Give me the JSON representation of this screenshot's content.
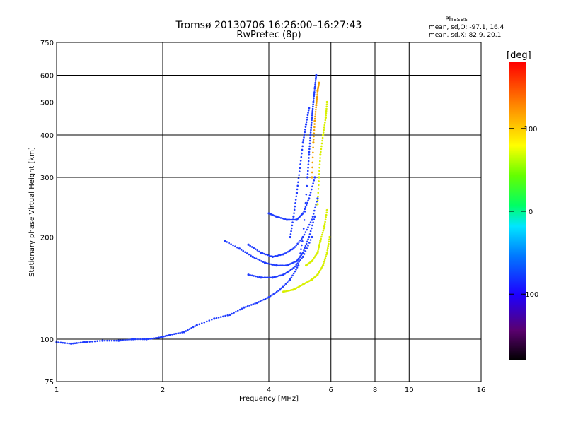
{
  "chart_data": {
    "type": "scatter",
    "title": "Tromsø 20130706 16:26:00–16:27:43",
    "subtitle": "RwPretec (8p)",
    "xlabel": "Frequency [MHz]",
    "ylabel": "Stationary phase Virtual Height [km]",
    "x_scale": "log",
    "y_scale": "log",
    "xlim": [
      1,
      16
    ],
    "ylim": [
      75,
      750
    ],
    "x_ticks": [
      {
        "value": 1,
        "label": "1"
      },
      {
        "value": 2,
        "label": "2"
      },
      {
        "value": 4,
        "label": "4"
      },
      {
        "value": 6,
        "label": "6"
      },
      {
        "value": 8,
        "label": "8"
      },
      {
        "value": 10,
        "label": "10"
      },
      {
        "value": 16,
        "label": "16"
      }
    ],
    "y_ticks": [
      {
        "value": 75,
        "label": "75"
      },
      {
        "value": 100,
        "label": "100"
      },
      {
        "value": 200,
        "label": "200"
      },
      {
        "value": 300,
        "label": "300"
      },
      {
        "value": 400,
        "label": "400"
      },
      {
        "value": 500,
        "label": "500"
      },
      {
        "value": 600,
        "label": "600"
      },
      {
        "value": 750,
        "label": "750"
      }
    ],
    "grid": true,
    "stats": {
      "heading": "Phases",
      "o_line": "mean, sd,O: -97.1, 16.4",
      "x_line": "mean, sd,X: 82.9, 20.1"
    },
    "colorbar": {
      "label": "[deg]",
      "range": [
        -180,
        180
      ],
      "tick_labels": [
        {
          "value": 100,
          "label": "100"
        },
        {
          "value": 0,
          "label": "0"
        },
        {
          "value": -100,
          "label": "-100"
        }
      ]
    },
    "traces": [
      {
        "mode": "O",
        "x": [
          1.0,
          1.1,
          1.2,
          1.35,
          1.5,
          1.65,
          1.8,
          1.95,
          2.1,
          2.3,
          2.5,
          2.8,
          3.1,
          3.4,
          3.7,
          4.0,
          4.3,
          4.6,
          4.85,
          5.0,
          5.15
        ],
        "y": [
          98,
          97,
          98,
          99,
          99,
          100,
          100,
          101,
          103,
          105,
          110,
          115,
          118,
          124,
          128,
          133,
          140,
          150,
          165,
          200,
          300
        ],
        "phase": -110
      },
      {
        "mode": "O",
        "x": [
          5.15,
          5.2,
          5.25,
          5.3,
          5.35,
          5.4,
          5.45
        ],
        "y": [
          300,
          350,
          400,
          450,
          500,
          550,
          600
        ],
        "phase": -110
      },
      {
        "mode": "O",
        "x": [
          3.0,
          3.3,
          3.6,
          3.9,
          4.2,
          4.5,
          4.8,
          5.0,
          5.2,
          5.4
        ],
        "y": [
          195,
          185,
          175,
          168,
          165,
          165,
          170,
          180,
          200,
          230
        ],
        "phase": -105
      },
      {
        "mode": "O",
        "x": [
          3.5,
          3.8,
          4.1,
          4.4,
          4.7,
          5.0,
          5.3,
          5.5
        ],
        "y": [
          190,
          180,
          175,
          178,
          185,
          200,
          225,
          260
        ],
        "phase": -105
      },
      {
        "mode": "O",
        "x": [
          3.5,
          3.8,
          4.1,
          4.4,
          4.7,
          5.0,
          5.3
        ],
        "y": [
          155,
          152,
          152,
          155,
          162,
          175,
          200
        ],
        "phase": -105
      },
      {
        "mode": "O",
        "x": [
          4.0,
          4.2,
          4.5,
          4.8,
          5.0,
          5.2,
          5.4
        ],
        "y": [
          235,
          230,
          225,
          225,
          235,
          260,
          300
        ],
        "phase": -100
      },
      {
        "mode": "O",
        "x": [
          4.6,
          4.7,
          4.8,
          4.9,
          5.0,
          5.1,
          5.2
        ],
        "y": [
          200,
          230,
          270,
          320,
          380,
          430,
          480
        ],
        "phase": -115
      },
      {
        "mode": "X",
        "x": [
          4.4,
          4.7,
          5.0,
          5.3,
          5.5,
          5.7,
          5.85,
          5.95
        ],
        "y": [
          138,
          140,
          145,
          150,
          155,
          165,
          180,
          200
        ],
        "phase": 95
      },
      {
        "mode": "X",
        "x": [
          5.1,
          5.3,
          5.5,
          5.6,
          5.75,
          5.85
        ],
        "y": [
          165,
          170,
          180,
          195,
          215,
          240
        ],
        "phase": 90
      },
      {
        "mode": "X",
        "x": [
          5.5,
          5.55,
          5.6,
          5.7,
          5.8,
          5.85
        ],
        "y": [
          250,
          300,
          350,
          400,
          450,
          500
        ],
        "phase": 85
      },
      {
        "mode": "X",
        "x": [
          5.3,
          5.35,
          5.4,
          5.45,
          5.5,
          5.55
        ],
        "y": [
          300,
          380,
          440,
          490,
          540,
          570
        ],
        "phase": 125
      }
    ]
  }
}
